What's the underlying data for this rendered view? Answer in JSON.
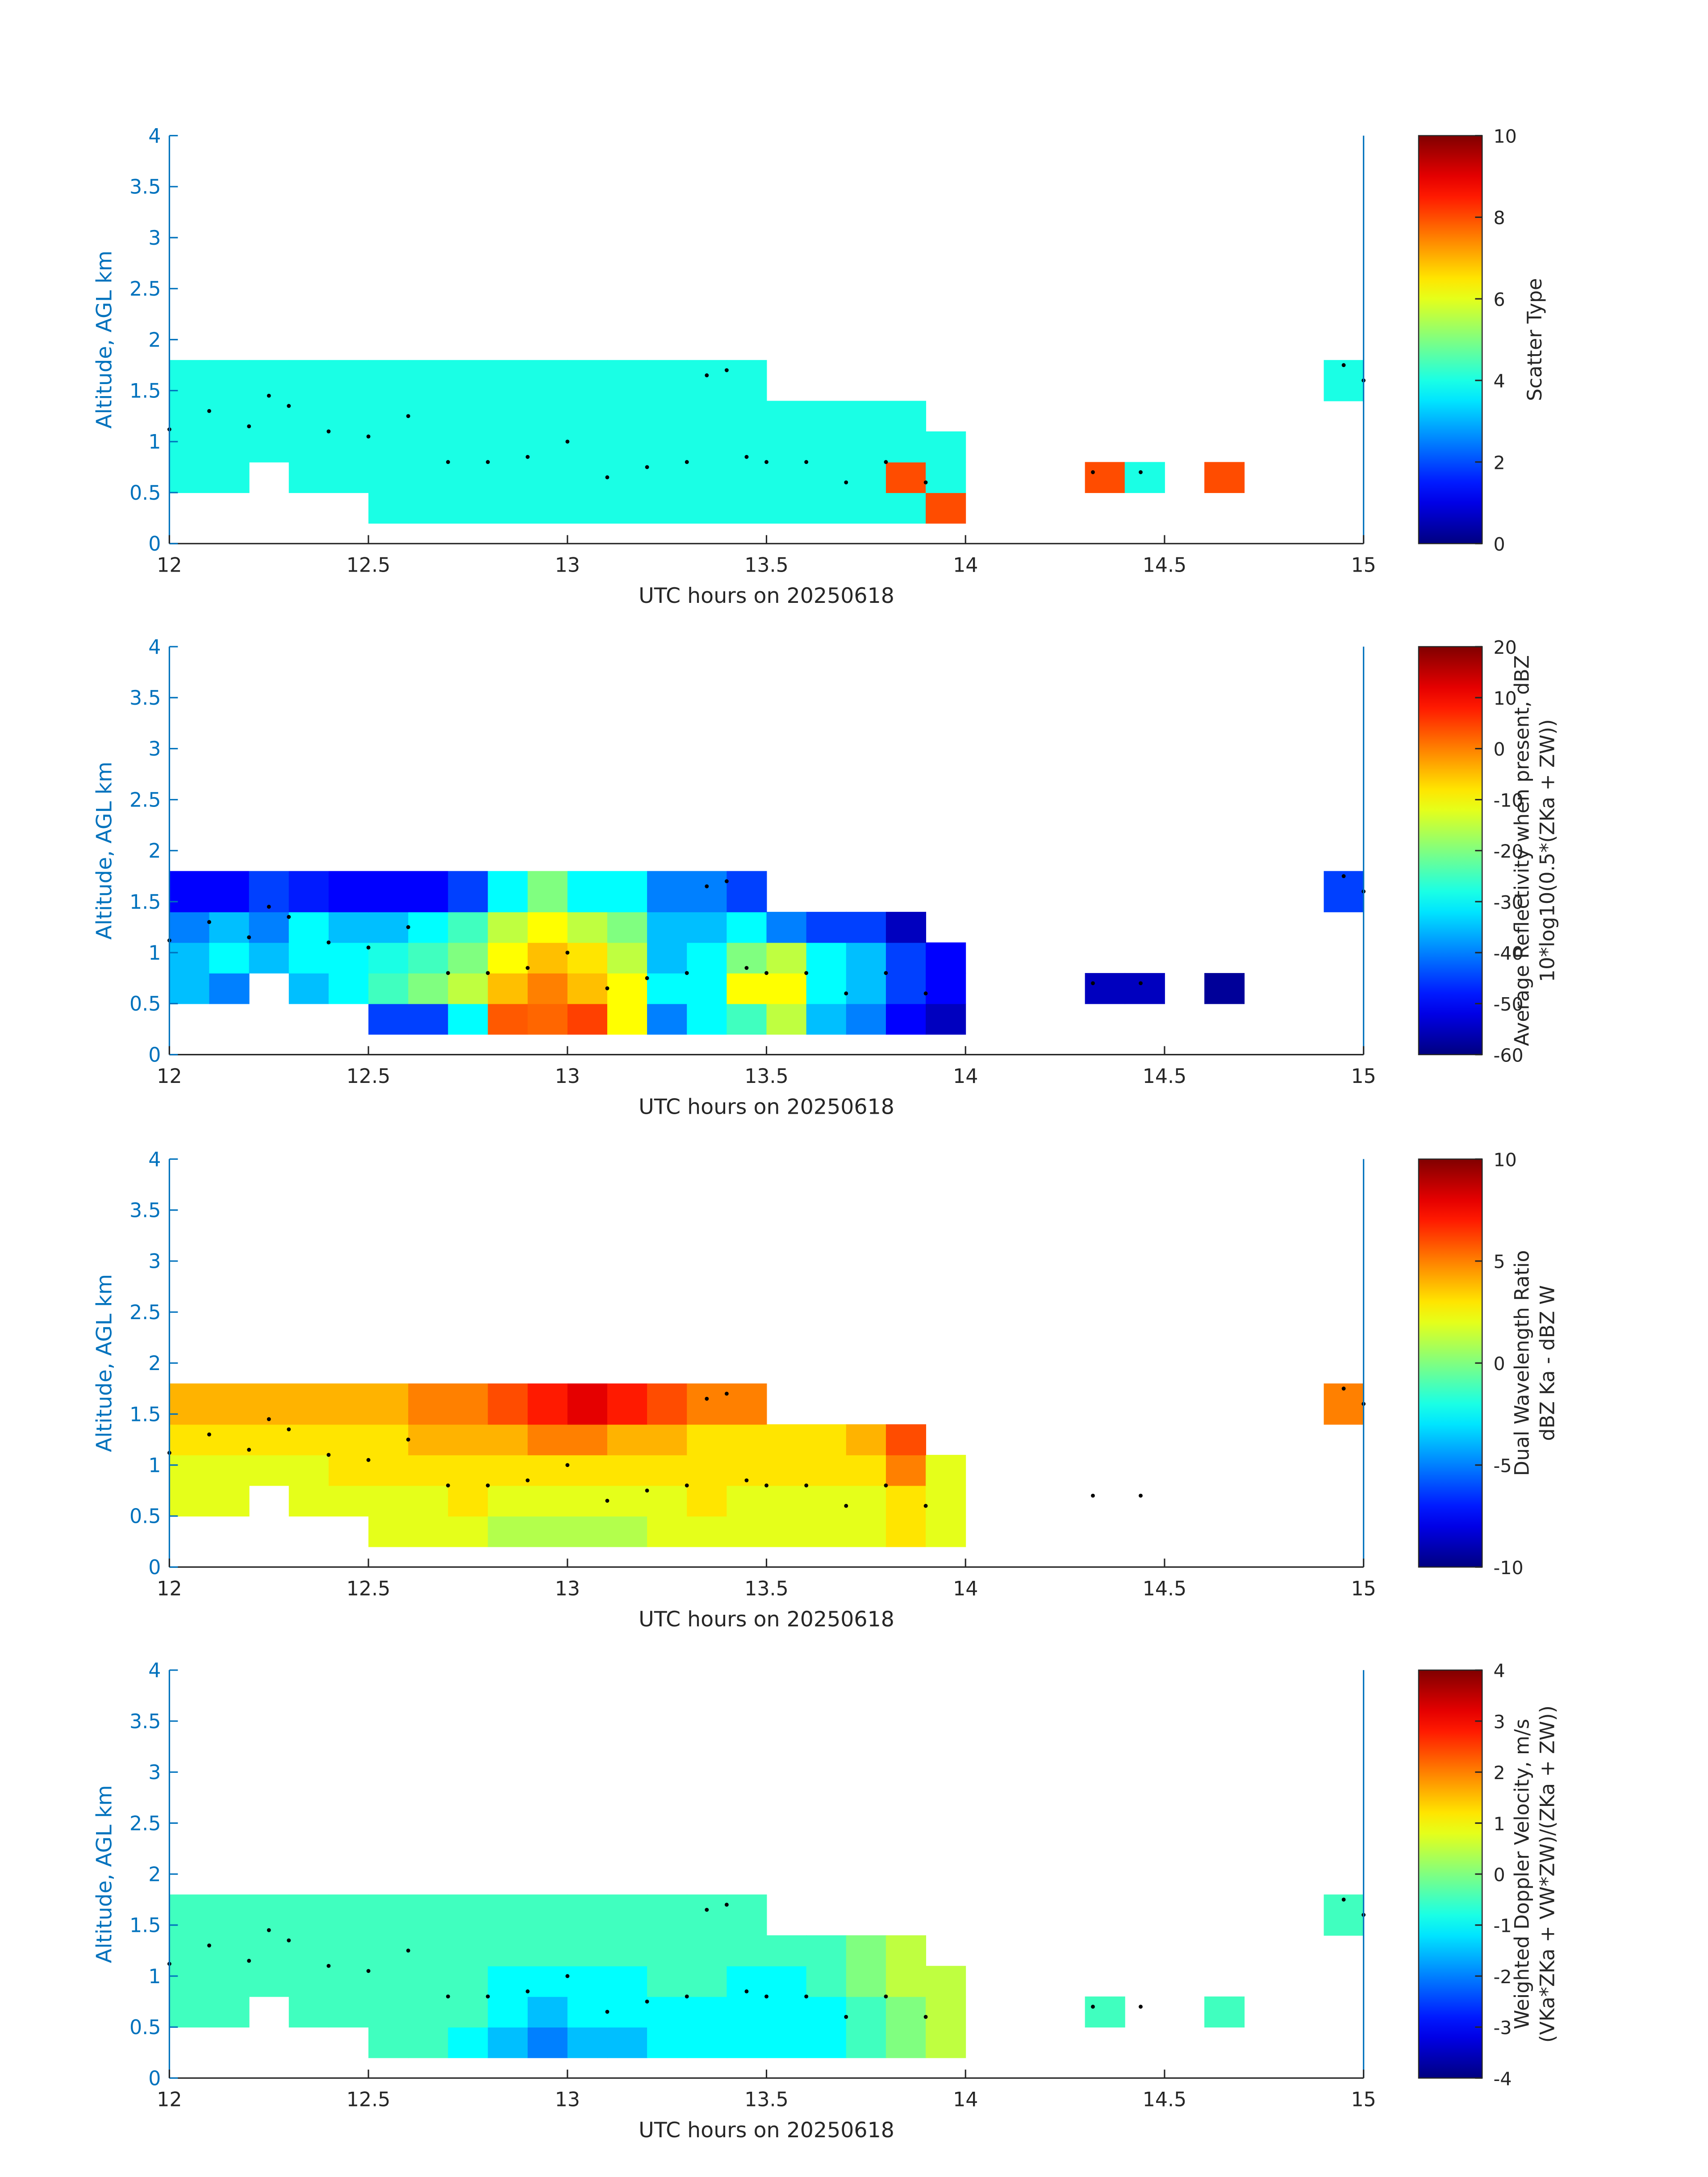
{
  "chart_data": [
    {
      "type": "heatmap",
      "xlabel": "UTC hours on 20250618",
      "ylabel": "Altitude, AGL km",
      "colorbar_label": [
        "Scatter Type"
      ],
      "colormap": "jet",
      "xlim": [
        12,
        15
      ],
      "ylim": [
        0,
        4
      ],
      "xticks": [
        12,
        12.5,
        13,
        13.5,
        14,
        14.5,
        15
      ],
      "yticks": [
        0,
        0.5,
        1,
        1.5,
        2,
        2.5,
        3,
        3.5,
        4
      ],
      "clim": [
        0,
        10
      ],
      "cticks": [
        0,
        2,
        4,
        6,
        8,
        10
      ],
      "x": [
        12,
        12.1,
        12.2,
        12.3,
        12.4,
        12.5,
        12.6,
        12.7,
        12.8,
        12.9,
        13,
        13.1,
        13.2,
        13.3,
        13.4,
        13.5,
        13.6,
        13.7,
        13.8,
        13.9,
        14,
        14.1,
        14.2,
        14.3,
        14.4,
        14.5,
        14.6,
        14.7,
        14.8,
        14.9,
        15
      ],
      "y": [
        0.2,
        0.5,
        0.8,
        1.1,
        1.4,
        1.8
      ],
      "z": [
        [
          null,
          null,
          null,
          null,
          null,
          4,
          4,
          4,
          4,
          4,
          4,
          4,
          4,
          4,
          4,
          4,
          4,
          4,
          4,
          8,
          null,
          null,
          null,
          null,
          null,
          null,
          null,
          null,
          null,
          null
        ],
        [
          4,
          4,
          null,
          4,
          4,
          4,
          4,
          4,
          4,
          4,
          4,
          4,
          4,
          4,
          4,
          4,
          4,
          4,
          8,
          4,
          null,
          null,
          null,
          8,
          4,
          null,
          8,
          null,
          null,
          null
        ],
        [
          4,
          4,
          4,
          4,
          4,
          4,
          4,
          4,
          4,
          4,
          4,
          4,
          4,
          4,
          4,
          4,
          4,
          4,
          4,
          4,
          null,
          null,
          null,
          null,
          null,
          null,
          null,
          null,
          null,
          null
        ],
        [
          4,
          4,
          4,
          4,
          4,
          4,
          4,
          4,
          4,
          4,
          4,
          4,
          4,
          4,
          4,
          4,
          4,
          4,
          4,
          null,
          null,
          null,
          null,
          null,
          null,
          null,
          null,
          null,
          null,
          null
        ],
        [
          4,
          4,
          4,
          4,
          4,
          4,
          4,
          4,
          4,
          4,
          4,
          4,
          4,
          4,
          4,
          null,
          null,
          null,
          null,
          null,
          null,
          null,
          null,
          null,
          null,
          null,
          null,
          null,
          null,
          4
        ]
      ],
      "marker_x": [
        12,
        12.1,
        12.2,
        12.25,
        12.3,
        12.4,
        12.5,
        12.6,
        12.7,
        12.8,
        12.9,
        13,
        13.1,
        13.2,
        13.3,
        13.35,
        13.4,
        13.45,
        13.5,
        13.6,
        13.7,
        13.8,
        13.9,
        14.32,
        14.44,
        14.95,
        15
      ],
      "marker_y": [
        1.12,
        1.3,
        1.15,
        1.45,
        1.35,
        1.1,
        1.05,
        1.25,
        0.8,
        0.8,
        0.85,
        1,
        0.65,
        0.75,
        0.8,
        1.65,
        1.7,
        0.85,
        0.8,
        0.8,
        0.6,
        0.8,
        0.6,
        0.7,
        0.7,
        1.75,
        1.6
      ]
    },
    {
      "type": "heatmap",
      "xlabel": "UTC hours on 20250618",
      "ylabel": "Altitude, AGL km",
      "colorbar_label": [
        "Average Reflectivity when present, dBZ",
        "10*log10(0.5*(ZKa + ZW))"
      ],
      "colormap": "jet",
      "xlim": [
        12,
        15
      ],
      "ylim": [
        0,
        4
      ],
      "xticks": [
        12,
        12.5,
        13,
        13.5,
        14,
        14.5,
        15
      ],
      "yticks": [
        0,
        0.5,
        1,
        1.5,
        2,
        2.5,
        3,
        3.5,
        4
      ],
      "clim": [
        -60,
        20
      ],
      "cticks": [
        -60,
        -50,
        -40,
        -30,
        -20,
        -10,
        0,
        10,
        20
      ],
      "x": [
        12,
        12.1,
        12.2,
        12.3,
        12.4,
        12.5,
        12.6,
        12.7,
        12.8,
        12.9,
        13,
        13.1,
        13.2,
        13.3,
        13.4,
        13.5,
        13.6,
        13.7,
        13.8,
        13.9,
        14,
        14.1,
        14.2,
        14.3,
        14.4,
        14.5,
        14.6,
        14.7,
        14.8,
        14.9,
        15
      ],
      "y": [
        0.2,
        0.5,
        0.8,
        1.1,
        1.4,
        1.8
      ],
      "z": [
        [
          null,
          null,
          null,
          null,
          null,
          -45,
          -45,
          -30,
          3,
          2,
          5,
          -10,
          -40,
          -30,
          -25,
          -15,
          -35,
          -40,
          -50,
          -55,
          null,
          null,
          null,
          null,
          null,
          null,
          null,
          null,
          null,
          null
        ],
        [
          -35,
          -40,
          null,
          -35,
          -30,
          -25,
          -20,
          -15,
          -5,
          0,
          -5,
          -10,
          -30,
          -30,
          -10,
          -10,
          -30,
          -35,
          -45,
          -50,
          null,
          null,
          null,
          -55,
          -55,
          null,
          -58,
          null,
          null,
          null
        ],
        [
          -35,
          -30,
          -35,
          -30,
          -30,
          -28,
          -25,
          -20,
          -10,
          -5,
          -8,
          -15,
          -35,
          -30,
          -20,
          -15,
          -30,
          -35,
          -45,
          -50,
          null,
          null,
          null,
          null,
          null,
          null,
          null,
          null,
          null,
          null
        ],
        [
          -40,
          -35,
          -40,
          -30,
          -35,
          -35,
          -30,
          -25,
          -15,
          -10,
          -15,
          -20,
          -35,
          -35,
          -30,
          -40,
          -45,
          -45,
          -55,
          null,
          null,
          null,
          null,
          null,
          null,
          null,
          null,
          null,
          null,
          null
        ],
        [
          -50,
          -50,
          -45,
          -48,
          -50,
          -50,
          -50,
          -45,
          -30,
          -20,
          -30,
          -30,
          -40,
          -40,
          -45,
          null,
          null,
          null,
          null,
          null,
          null,
          null,
          null,
          null,
          null,
          null,
          null,
          null,
          null,
          -45
        ]
      ]
    },
    {
      "type": "heatmap",
      "xlabel": "UTC hours on 20250618",
      "ylabel": "Altitude, AGL km",
      "colorbar_label": [
        "Dual Wavelength Ratio",
        "dBZ Ka - dBZ W"
      ],
      "colormap": "jet",
      "xlim": [
        12,
        15
      ],
      "ylim": [
        0,
        4
      ],
      "xticks": [
        12,
        12.5,
        13,
        13.5,
        14,
        14.5,
        15
      ],
      "yticks": [
        0,
        0.5,
        1,
        1.5,
        2,
        2.5,
        3,
        3.5,
        4
      ],
      "clim": [
        -10,
        10
      ],
      "cticks": [
        -10,
        -5,
        0,
        5,
        10
      ],
      "x": [
        12,
        12.1,
        12.2,
        12.3,
        12.4,
        12.5,
        12.6,
        12.7,
        12.8,
        12.9,
        13,
        13.1,
        13.2,
        13.3,
        13.4,
        13.5,
        13.6,
        13.7,
        13.8,
        13.9,
        14,
        14.1,
        14.2,
        14.3,
        14.4,
        14.5,
        14.6,
        14.7,
        14.8,
        14.9,
        15
      ],
      "y": [
        0.2,
        0.5,
        0.8,
        1.1,
        1.4,
        1.8
      ],
      "z": [
        [
          null,
          null,
          null,
          null,
          null,
          2,
          2,
          2,
          1,
          1,
          1,
          1,
          2,
          2,
          2,
          2,
          2,
          2,
          3,
          2,
          null,
          null,
          null,
          null,
          null,
          null,
          null,
          null,
          null,
          null
        ],
        [
          2,
          2,
          null,
          2,
          2,
          2,
          2,
          3,
          2,
          2,
          2,
          2,
          2,
          3,
          2,
          2,
          2,
          2,
          3,
          2,
          null,
          null,
          null,
          null,
          null,
          null,
          null,
          null,
          null,
          null
        ],
        [
          2,
          2,
          2,
          2,
          3,
          3,
          3,
          3,
          3,
          3,
          3,
          3,
          3,
          3,
          3,
          3,
          3,
          3,
          5,
          2,
          null,
          null,
          null,
          null,
          null,
          null,
          null,
          null,
          null,
          null
        ],
        [
          3,
          3,
          3,
          3,
          3,
          3,
          4,
          4,
          4,
          5,
          5,
          4,
          4,
          3,
          3,
          3,
          3,
          4,
          6,
          null,
          null,
          null,
          null,
          null,
          null,
          null,
          null,
          null,
          null,
          null
        ],
        [
          4,
          4,
          4,
          4,
          4,
          4,
          5,
          5,
          6,
          7,
          8,
          7,
          6,
          5,
          5,
          null,
          null,
          null,
          null,
          null,
          null,
          null,
          null,
          null,
          null,
          null,
          null,
          null,
          null,
          5
        ]
      ]
    },
    {
      "type": "heatmap",
      "xlabel": "UTC hours on 20250618",
      "ylabel": "Altitude, AGL km",
      "colorbar_label": [
        "Weighted Doppler Velocity, m/s",
        "(VKa*ZKa + VW*ZW)/(ZKa + ZW))"
      ],
      "colormap": "jet",
      "xlim": [
        12,
        15
      ],
      "ylim": [
        0,
        4
      ],
      "xticks": [
        12,
        12.5,
        13,
        13.5,
        14,
        14.5,
        15
      ],
      "yticks": [
        0,
        0.5,
        1,
        1.5,
        2,
        2.5,
        3,
        3.5,
        4
      ],
      "clim": [
        -4,
        4
      ],
      "cticks": [
        -4,
        -3,
        -2,
        -1,
        0,
        1,
        2,
        3,
        4
      ],
      "x": [
        12,
        12.1,
        12.2,
        12.3,
        12.4,
        12.5,
        12.6,
        12.7,
        12.8,
        12.9,
        13,
        13.1,
        13.2,
        13.3,
        13.4,
        13.5,
        13.6,
        13.7,
        13.8,
        13.9,
        14,
        14.1,
        14.2,
        14.3,
        14.4,
        14.5,
        14.6,
        14.7,
        14.8,
        14.9,
        15
      ],
      "y": [
        0.2,
        0.5,
        0.8,
        1.1,
        1.4,
        1.8
      ],
      "z": [
        [
          null,
          null,
          null,
          null,
          null,
          -0.5,
          -0.5,
          -1,
          -1.5,
          -2,
          -1.5,
          -1.5,
          -1,
          -1,
          -1,
          -1,
          -1,
          -0.5,
          0,
          0.5,
          null,
          null,
          null,
          null,
          null,
          null,
          null,
          null,
          null,
          null
        ],
        [
          -0.5,
          -0.5,
          null,
          -0.5,
          -0.5,
          -0.5,
          -0.5,
          -0.5,
          -1,
          -1.5,
          -1,
          -1,
          -1,
          -1,
          -1,
          -1,
          -1,
          -0.5,
          0,
          0.5,
          null,
          null,
          null,
          -0.5,
          null,
          null,
          -0.5,
          null,
          null,
          null
        ],
        [
          -0.5,
          -0.5,
          -0.5,
          -0.5,
          -0.5,
          -0.5,
          -0.5,
          -0.5,
          -1,
          -1,
          -1,
          -1,
          -0.5,
          -0.5,
          -1,
          -1,
          -0.5,
          0,
          0.5,
          0.5,
          null,
          null,
          null,
          null,
          null,
          null,
          null,
          null,
          null,
          null
        ],
        [
          -0.5,
          -0.5,
          -0.5,
          -0.5,
          -0.5,
          -0.5,
          -0.5,
          -0.5,
          -0.5,
          -0.5,
          -0.5,
          -0.5,
          -0.5,
          -0.5,
          -0.5,
          -0.5,
          -0.5,
          0,
          0.5,
          null,
          null,
          null,
          null,
          null,
          null,
          null,
          null,
          null,
          null,
          null
        ],
        [
          -0.5,
          -0.5,
          -0.5,
          -0.5,
          -0.5,
          -0.5,
          -0.5,
          -0.5,
          -0.5,
          -0.5,
          -0.5,
          -0.5,
          -0.5,
          -0.5,
          -0.5,
          null,
          null,
          null,
          null,
          null,
          null,
          null,
          null,
          null,
          null,
          null,
          null,
          null,
          null,
          -0.5
        ]
      ]
    }
  ]
}
